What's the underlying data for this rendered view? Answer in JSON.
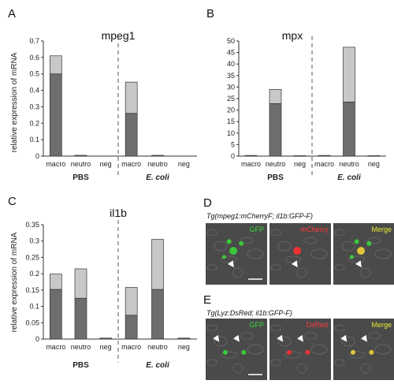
{
  "panel_letters": [
    "A",
    "B",
    "C",
    "D",
    "E"
  ],
  "chart_data": [
    {
      "type": "bar",
      "panel": "A",
      "title": "mpeg1",
      "ylabel": "relative expression of  mRNA",
      "ylim": [
        0,
        0.7
      ],
      "yticks": [
        "0",
        "0.1",
        "0.2",
        "0.3",
        "0.4",
        "0.5",
        "0.6",
        "0.7"
      ],
      "categories": [
        "macro",
        "neutro",
        "neg",
        "macro",
        "neutro",
        "neg"
      ],
      "groups": [
        "PBS",
        "E. coli"
      ],
      "series": [
        {
          "values": [
            0.5,
            0.005,
            0.0,
            0.26,
            0.005,
            0.0
          ],
          "color": "#6e6e6e"
        },
        {
          "values": [
            0.11,
            0.0,
            0.0,
            0.19,
            0.0,
            0.0
          ],
          "color": "#c8c8c8"
        }
      ],
      "grid": false
    },
    {
      "type": "bar",
      "panel": "B",
      "title": "mpx",
      "ylabel": "",
      "ylim": [
        0,
        50
      ],
      "yticks": [
        "0",
        "5",
        "10",
        "15",
        "20",
        "25",
        "30",
        "35",
        "40",
        "45",
        "50"
      ],
      "categories": [
        "macro",
        "neutro",
        "neg",
        "macro",
        "neutro",
        "neg"
      ],
      "groups": [
        "PBS",
        "E. coli"
      ],
      "series": [
        {
          "values": [
            0.3,
            22.8,
            0.2,
            0.3,
            23.5,
            0.2
          ],
          "color": "#6e6e6e"
        },
        {
          "values": [
            0.0,
            6.2,
            0.0,
            0.0,
            23.8,
            0.0
          ],
          "color": "#c8c8c8"
        }
      ],
      "grid": false
    },
    {
      "type": "bar",
      "panel": "C",
      "title": "il1b",
      "ylabel": "relative expression of  mRNA",
      "ylim": [
        0,
        0.35
      ],
      "yticks": [
        "0",
        "0.05",
        "0.1",
        "0.15",
        "0.2",
        "0.25",
        "0.3",
        "0.35"
      ],
      "categories": [
        "macro",
        "neutro",
        "neg",
        "macro",
        "neutro",
        "neg"
      ],
      "groups": [
        "PBS",
        "E. coli"
      ],
      "series": [
        {
          "values": [
            0.152,
            0.125,
            0.003,
            0.073,
            0.152,
            0.003
          ],
          "color": "#6e6e6e"
        },
        {
          "values": [
            0.047,
            0.09,
            0.0,
            0.085,
            0.153,
            0.0
          ],
          "color": "#c8c8c8"
        }
      ],
      "grid": false
    }
  ],
  "microscopy": {
    "D": {
      "title": "Tg(mpeg1:mCherryF; il1b:GFP-F)",
      "channels": [
        {
          "label": "GFP",
          "color": "#39d639"
        },
        {
          "label": "mCherry",
          "color": "#ff3b3b"
        },
        {
          "label": "Merge",
          "color": "#e8e83a"
        }
      ]
    },
    "E": {
      "title": "Tg(Lyz:DsRed; il1b:GFP-F)",
      "channels": [
        {
          "label": "GFP",
          "color": "#39d639"
        },
        {
          "label": "DsRed",
          "color": "#ff3b3b"
        },
        {
          "label": "Merge",
          "color": "#e8e83a"
        }
      ]
    }
  }
}
